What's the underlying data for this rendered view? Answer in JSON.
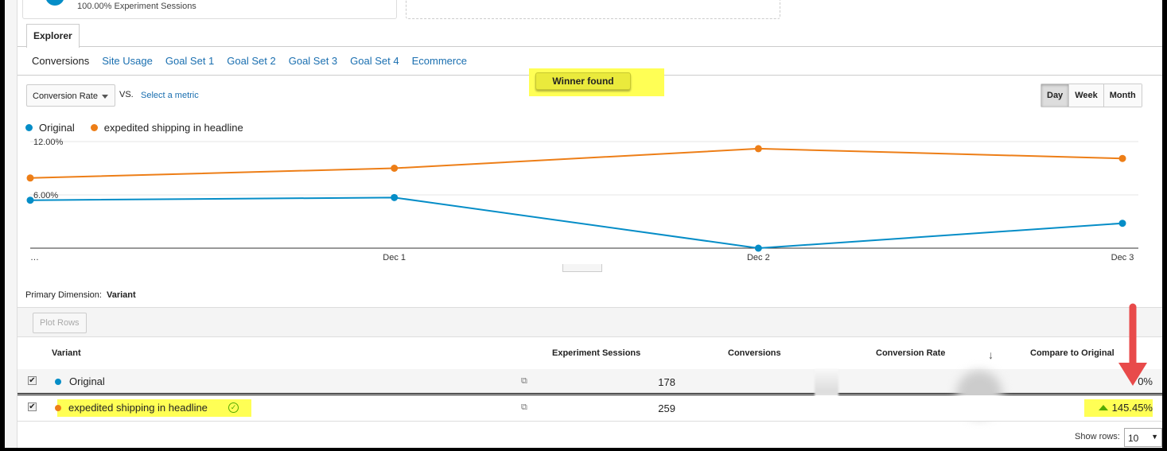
{
  "summary": {
    "variant_sessions_text": "100.00% Experiment Sessions"
  },
  "tabs": {
    "explorer": "Explorer"
  },
  "subnav": [
    "Conversions",
    "Site Usage",
    "Goal Set 1",
    "Goal Set 2",
    "Goal Set 3",
    "Goal Set 4",
    "Ecommerce"
  ],
  "banner": {
    "winner": "Winner found"
  },
  "controls": {
    "metric": "Conversion Rate",
    "vs": "VS.",
    "select_metric": "Select a metric",
    "periods": [
      "Day",
      "Week",
      "Month"
    ],
    "active_period": "Day"
  },
  "colors": {
    "original": "#058dc7",
    "variant": "#ed7e17",
    "highlight": "#ffff55",
    "up": "#55aa00"
  },
  "chart_data": {
    "type": "line",
    "x": [
      "…",
      "Dec 1",
      "Dec 2",
      "Dec 3"
    ],
    "yticks": [
      "6.00%",
      "12.00%"
    ],
    "ylim": [
      0,
      12
    ],
    "grid": true,
    "legend": "top-left",
    "series": [
      {
        "name": "Original",
        "values": [
          5.4,
          5.7,
          0.0,
          2.8
        ]
      },
      {
        "name": "expedited shipping in headline",
        "values": [
          7.9,
          9.0,
          11.2,
          10.1
        ]
      }
    ]
  },
  "table": {
    "primary_dimension_label": "Primary Dimension:",
    "primary_dimension": "Variant",
    "plot_rows": "Plot Rows",
    "headers": {
      "variant": "Variant",
      "sessions": "Experiment Sessions",
      "conversions": "Conversions",
      "rate": "Conversion Rate",
      "compare": "Compare to Original"
    },
    "rows": [
      {
        "variant": "Original",
        "sessions": "178",
        "compare": "0%",
        "checked": true
      },
      {
        "variant": "expedited shipping in headline",
        "sessions": "259",
        "compare": "145.45%",
        "checked": true,
        "winner": true
      }
    ],
    "show_rows_label": "Show rows:",
    "show_rows": "10"
  }
}
